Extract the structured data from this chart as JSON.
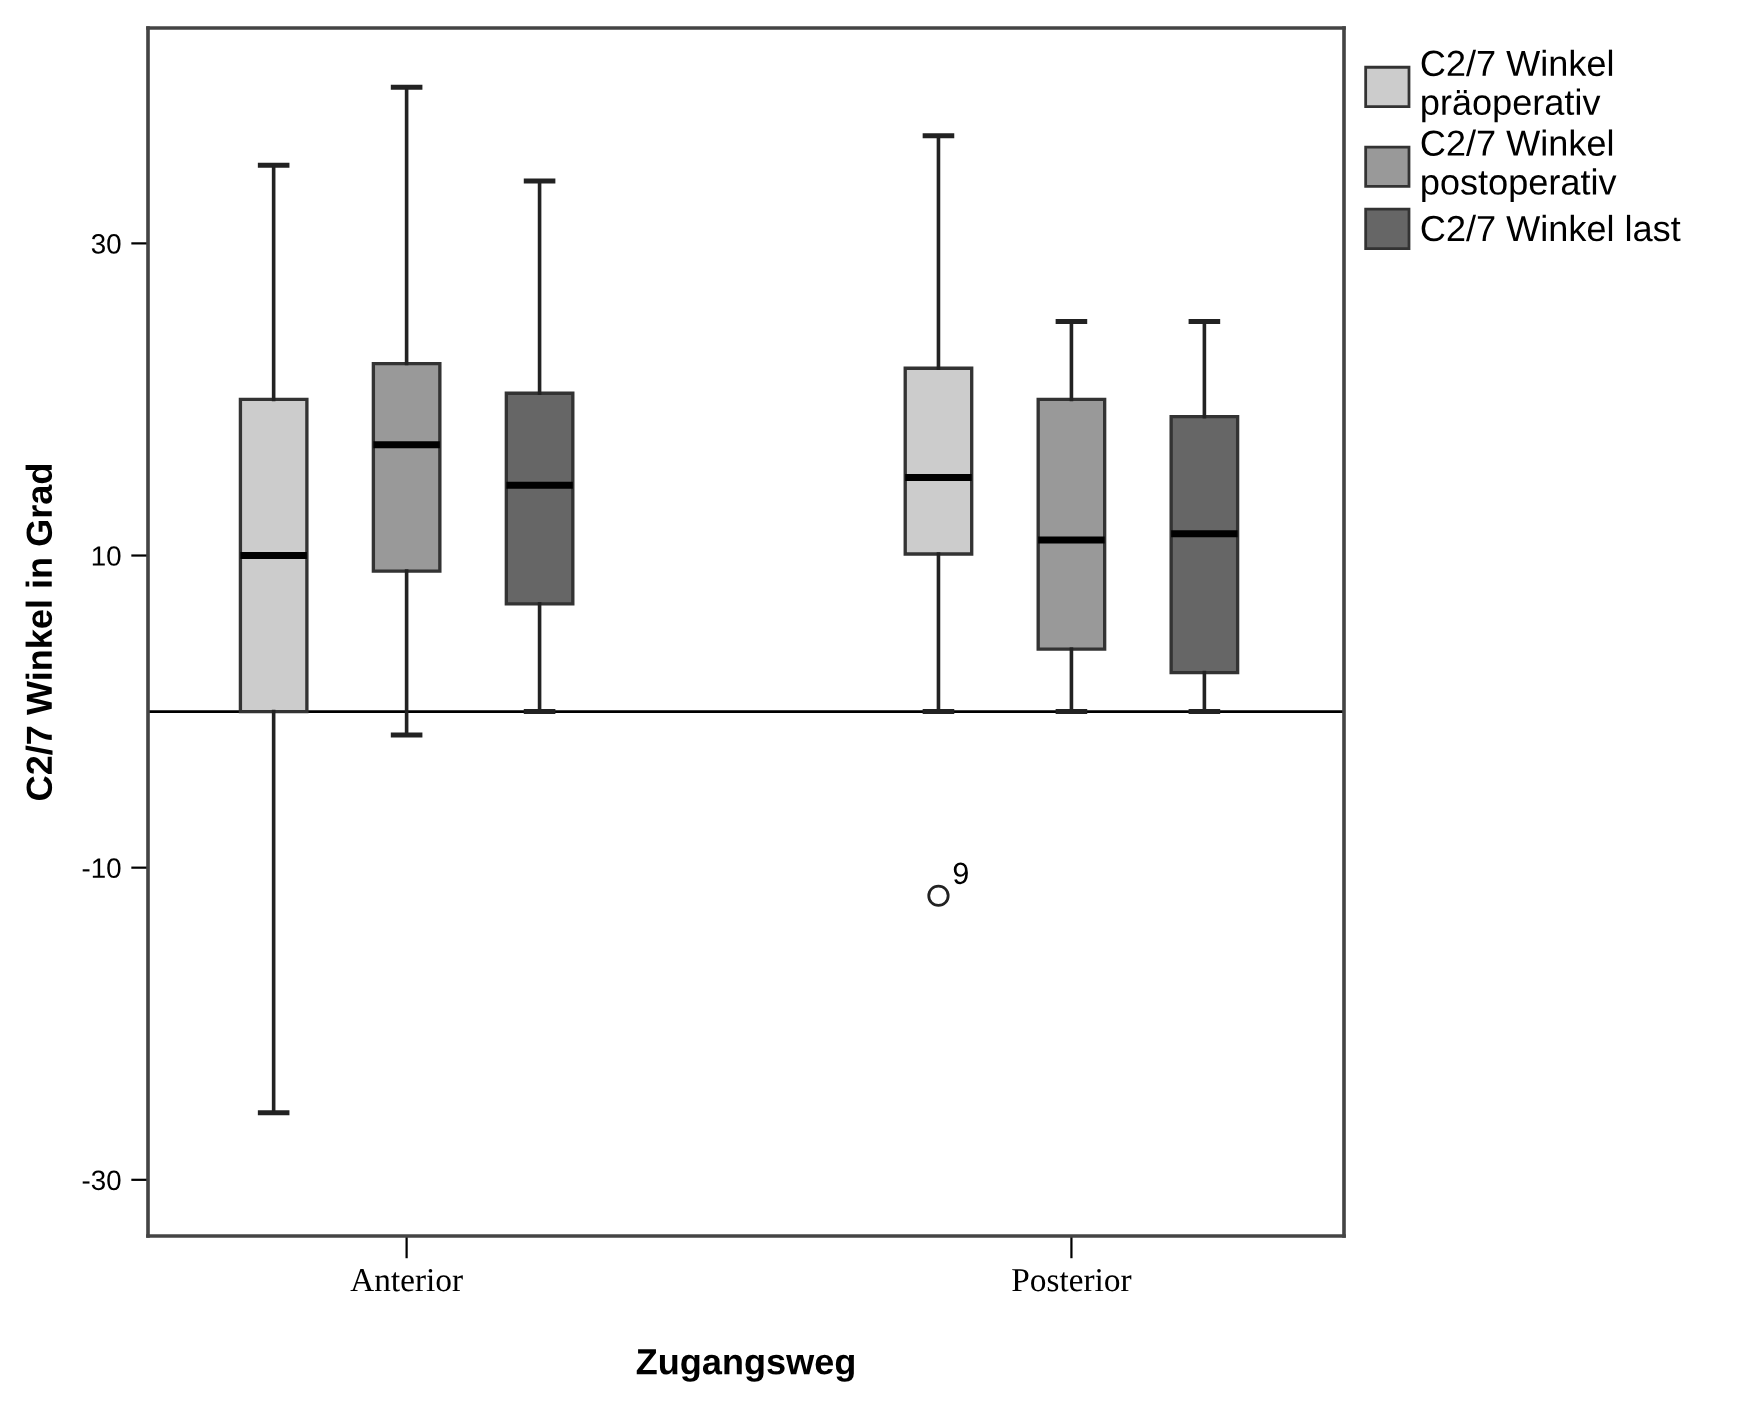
{
  "chart_data": {
    "type": "box",
    "xlabel": "Zugangsweg",
    "ylabel": "C2/7 Winkel in Grad",
    "categories": [
      "Anterior",
      "Posterior"
    ],
    "series": [
      {
        "name": "C2/7 Winkel präoperativ",
        "color": "#cccccc",
        "boxes": [
          {
            "low": -25.7,
            "q1": 0,
            "median": 10.0,
            "q3": 20.0,
            "high": 35.0
          },
          {
            "low": 0,
            "q1": 10.1,
            "median": 15.0,
            "q3": 22.0,
            "high": 36.9,
            "outliers": [
              -11.8
            ]
          }
        ]
      },
      {
        "name": "C2/7 Winkel postoperativ",
        "color": "#999999",
        "boxes": [
          {
            "low": -1.5,
            "q1": 9.0,
            "median": 17.1,
            "q3": 22.3,
            "high": 40.0
          },
          {
            "low": 0,
            "q1": 4.0,
            "median": 11.0,
            "q3": 20.0,
            "high": 25.0
          }
        ]
      },
      {
        "name": "C2/7 Winkel last",
        "color": "#666666",
        "boxes": [
          {
            "low": 0,
            "q1": 6.9,
            "median": 14.5,
            "q3": 20.4,
            "high": 34.0
          },
          {
            "low": 0,
            "q1": 2.5,
            "median": 11.4,
            "q3": 18.9,
            "high": 25.0
          }
        ]
      }
    ],
    "ylim": [
      -33.6,
      43.8
    ],
    "yticks": [
      -30,
      -10,
      10,
      30
    ],
    "ref_lines": [
      {
        "axis": "y",
        "value": 0,
        "color": "#000000"
      }
    ],
    "annotations": [
      "9"
    ],
    "legend": "top right",
    "grid": false
  }
}
